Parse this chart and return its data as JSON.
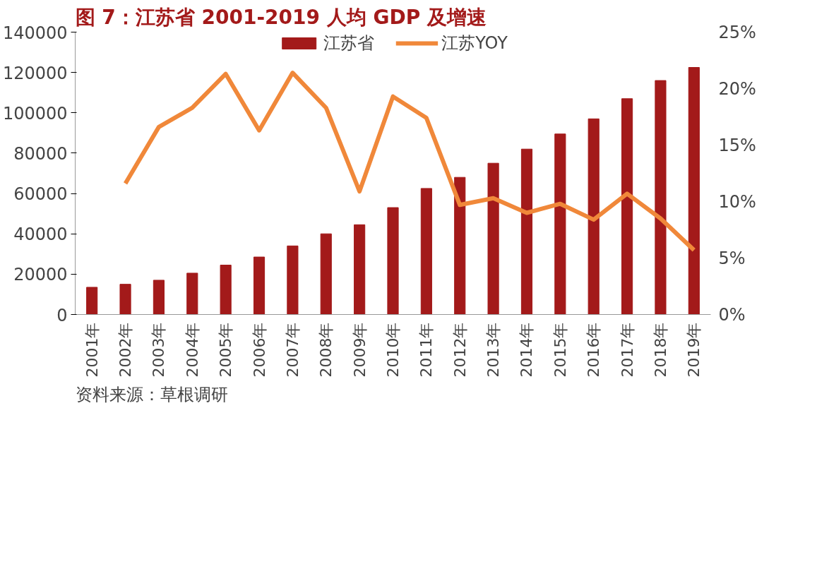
{
  "chart_data": {
    "type": "bar",
    "title": "图 7：江苏省 2001-2019 人均 GDP 及增速",
    "categories": [
      "2001年",
      "2002年",
      "2003年",
      "2004年",
      "2005年",
      "2006年",
      "2007年",
      "2008年",
      "2009年",
      "2010年",
      "2011年",
      "2012年",
      "2013年",
      "2014年",
      "2015年",
      "2016年",
      "2017年",
      "2018年",
      "2019年"
    ],
    "series": [
      {
        "name": "江苏省",
        "color": "#a31a1a",
        "values": [
          13500,
          15000,
          17000,
          20500,
          24500,
          28500,
          34000,
          40000,
          44500,
          53000,
          62500,
          68000,
          75000,
          82000,
          89500,
          97000,
          107000,
          116000,
          122500
        ]
      },
      {
        "name": "江苏YOY",
        "type": "line",
        "axis": "y2",
        "color": "#f0883a",
        "values": [
          null,
          11.6,
          16.6,
          18.3,
          21.3,
          16.3,
          21.4,
          18.3,
          10.9,
          19.3,
          17.4,
          9.7,
          10.3,
          9.0,
          9.8,
          8.4,
          10.7,
          8.5,
          5.7
        ]
      }
    ],
    "ylim": [
      0,
      140000
    ],
    "yticks": [
      0,
      20000,
      40000,
      60000,
      80000,
      100000,
      120000,
      140000
    ],
    "y2lim": [
      0,
      25
    ],
    "y2ticks": [
      {
        "value": 0,
        "label": "0%"
      },
      {
        "value": 5,
        "label": "5%"
      },
      {
        "value": 10,
        "label": "10%"
      },
      {
        "value": 15,
        "label": "15%"
      },
      {
        "value": 20,
        "label": "20%"
      },
      {
        "value": 25,
        "label": "25%"
      }
    ],
    "legend": "top",
    "grid": false,
    "annotations": [
      "资料来源：草根调研"
    ]
  }
}
